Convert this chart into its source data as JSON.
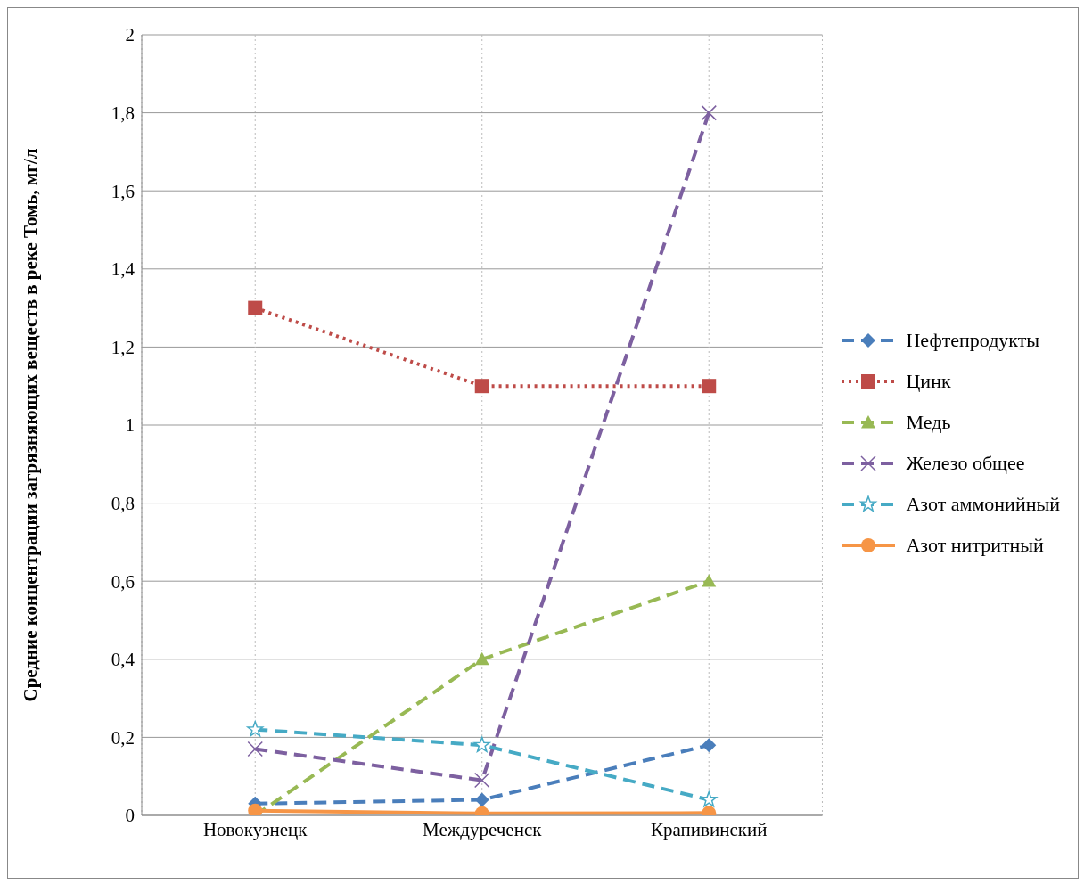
{
  "chart_data": {
    "type": "line",
    "ylabel": "Средние концентрации загрязняющих веществ в реке Томь, мг/л",
    "categories": [
      "Новокузнецк",
      "Междуреченск",
      "Крапивинский"
    ],
    "series": [
      {
        "name": "Нефтепродукты",
        "color": "#4a7ebb",
        "values": [
          0.03,
          0.04,
          0.18
        ],
        "marker": "diamond",
        "line_style": "dashed"
      },
      {
        "name": "Цинк",
        "color": "#be4b48",
        "values": [
          1.3,
          1.1,
          1.1
        ],
        "marker": "square",
        "line_style": "dotted"
      },
      {
        "name": "Медь",
        "color": "#98b954",
        "values": [
          0,
          0.4,
          0.6
        ],
        "marker": "triangle",
        "line_style": "dashed"
      },
      {
        "name": "Железо общее",
        "color": "#7d60a0",
        "values": [
          0.17,
          0.09,
          1.8
        ],
        "marker": "cross",
        "line_style": "dashed"
      },
      {
        "name": "Азот аммонийный",
        "color": "#46aac5",
        "values": [
          0.22,
          0.18,
          0.04
        ],
        "marker": "star",
        "line_style": "dashed"
      },
      {
        "name": "Азот нитритный",
        "color": "#f69546",
        "values": [
          0.012,
          0.005,
          0.006
        ],
        "marker": "circle",
        "line_style": "solid"
      }
    ],
    "ylim": [
      0,
      2
    ],
    "yticks": [
      0,
      {
        "value": 0.2,
        "label": "0,2"
      },
      {
        "value": 0.4,
        "label": "0,4"
      },
      {
        "value": 0.6,
        "label": "0,6"
      },
      {
        "value": 0.8,
        "label": "0,8"
      },
      1,
      {
        "value": 1.2,
        "label": "1,2"
      },
      {
        "value": 1.4,
        "label": "1,4"
      },
      {
        "value": 1.6,
        "label": "1,6"
      },
      {
        "value": 1.8,
        "label": "1,8"
      },
      2
    ],
    "grid": true,
    "legend": "right"
  }
}
